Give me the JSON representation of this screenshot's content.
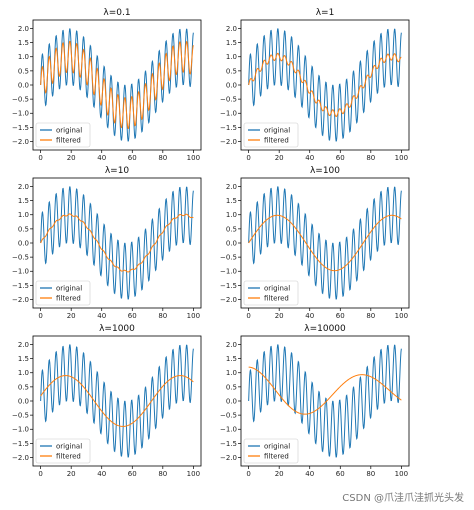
{
  "watermark": "CSDN @爪洼爪洼抓光头发",
  "colors": {
    "original": "#1f77b4",
    "filtered": "#ff7f0e",
    "axes": "#000000"
  },
  "chart_data": [
    {
      "type": "line",
      "title": "λ=0.1",
      "xlim": [
        -5,
        105
      ],
      "ylim": [
        -2.3,
        2.3
      ],
      "xticks": [
        0,
        20,
        40,
        60,
        80,
        100
      ],
      "yticks": [
        -2.0,
        -1.5,
        -1.0,
        -0.5,
        0.0,
        0.5,
        1.0,
        1.5,
        2.0
      ],
      "legend": {
        "position": "lower left",
        "entries": [
          "original",
          "filtered"
        ]
      },
      "series": [
        {
          "name": "original",
          "signal": "sin(2πx/75) + sin(2πx/4.5)",
          "x_range": [
            0,
            100
          ]
        },
        {
          "name": "filtered",
          "signal": "sin(2πx/75) + 0.55·sin(2πx/4.5)",
          "x_range": [
            0,
            100
          ]
        }
      ]
    },
    {
      "type": "line",
      "title": "λ=1",
      "xlim": [
        -5,
        105
      ],
      "ylim": [
        -2.3,
        2.3
      ],
      "xticks": [
        0,
        20,
        40,
        60,
        80,
        100
      ],
      "yticks": [
        -2.0,
        -1.5,
        -1.0,
        -0.5,
        0.0,
        0.5,
        1.0,
        1.5,
        2.0
      ],
      "legend": {
        "position": "lower left",
        "entries": [
          "original",
          "filtered"
        ]
      },
      "series": [
        {
          "name": "original",
          "signal": "sin(2πx/75) + sin(2πx/4.5)",
          "x_range": [
            0,
            100
          ]
        },
        {
          "name": "filtered",
          "signal": "1.0·sin(2πx/75) + 0.12·sin(2πx/4.5)",
          "x_range": [
            0,
            100
          ]
        }
      ]
    },
    {
      "type": "line",
      "title": "λ=10",
      "xlim": [
        -5,
        105
      ],
      "ylim": [
        -2.3,
        2.3
      ],
      "xticks": [
        0,
        20,
        40,
        60,
        80,
        100
      ],
      "yticks": [
        -2.0,
        -1.5,
        -1.0,
        -0.5,
        0.0,
        0.5,
        1.0,
        1.5,
        2.0
      ],
      "legend": {
        "position": "lower left",
        "entries": [
          "original",
          "filtered"
        ]
      },
      "series": [
        {
          "name": "original",
          "signal": "sin(2πx/75) + sin(2πx/4.5)",
          "x_range": [
            0,
            100
          ]
        },
        {
          "name": "filtered",
          "signal": "1.0·sin(2πx/75) + 0.03·sin(2πx/4.5)",
          "x_range": [
            0,
            100
          ]
        }
      ]
    },
    {
      "type": "line",
      "title": "λ=100",
      "xlim": [
        -5,
        105
      ],
      "ylim": [
        -2.3,
        2.3
      ],
      "xticks": [
        0,
        20,
        40,
        60,
        80,
        100
      ],
      "yticks": [
        -2.0,
        -1.5,
        -1.0,
        -0.5,
        0.0,
        0.5,
        1.0,
        1.5,
        2.0
      ],
      "legend": {
        "position": "lower left",
        "entries": [
          "original",
          "filtered"
        ]
      },
      "series": [
        {
          "name": "original",
          "signal": "sin(2πx/75) + sin(2πx/4.5)",
          "x_range": [
            0,
            100
          ]
        },
        {
          "name": "filtered",
          "signal": "0.98·sin(2πx/75)",
          "x_range": [
            0,
            100
          ]
        }
      ]
    },
    {
      "type": "line",
      "title": "λ=1000",
      "xlim": [
        -5,
        105
      ],
      "ylim": [
        -2.3,
        2.3
      ],
      "xticks": [
        0,
        20,
        40,
        60,
        80,
        100
      ],
      "yticks": [
        -2.0,
        -1.5,
        -1.0,
        -0.5,
        0.0,
        0.5,
        1.0,
        1.5,
        2.0
      ],
      "legend": {
        "position": "lower left",
        "entries": [
          "original",
          "filtered"
        ]
      },
      "series": [
        {
          "name": "original",
          "signal": "sin(2πx/75) + sin(2πx/4.5)",
          "x_range": [
            0,
            100
          ]
        },
        {
          "name": "filtered",
          "signal": "0.9·sin(2πx/75 + 0.2)",
          "x_range": [
            0,
            100
          ]
        }
      ]
    },
    {
      "type": "line",
      "title": "λ=10000",
      "xlim": [
        -5,
        105
      ],
      "ylim": [
        -2.3,
        2.3
      ],
      "xticks": [
        0,
        20,
        40,
        60,
        80,
        100
      ],
      "yticks": [
        -2.0,
        -1.5,
        -1.0,
        -0.5,
        0.0,
        0.5,
        1.0,
        1.5,
        2.0
      ],
      "legend": {
        "position": "lower left",
        "entries": [
          "original",
          "filtered"
        ]
      },
      "series": [
        {
          "name": "original",
          "signal": "sin(2πx/75) + sin(2πx/4.5)",
          "x_range": [
            0,
            100
          ]
        },
        {
          "name": "filtered",
          "signal": "0.3 + 0.9·cos(2πx/75)·(1 − 0.004x)",
          "x_range": [
            0,
            100
          ]
        }
      ]
    }
  ]
}
